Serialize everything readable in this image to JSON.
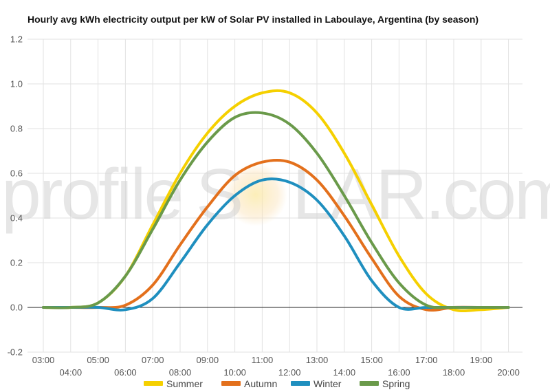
{
  "chart_data": {
    "type": "line",
    "title": "Hourly avg kWh electricity output per kW of Solar PV installed in Laboulaye, Argentina (by season)",
    "xlabel": "",
    "ylabel": "",
    "ylim": [
      -0.2,
      1.2
    ],
    "y_ticks": [
      "-0.2",
      "0.0",
      "0.2",
      "0.4",
      "0.6",
      "0.8",
      "1.0",
      "1.2"
    ],
    "categories": [
      "03:00",
      "04:00",
      "05:00",
      "06:00",
      "07:00",
      "08:00",
      "09:00",
      "10:00",
      "11:00",
      "12:00",
      "13:00",
      "14:00",
      "15:00",
      "16:00",
      "17:00",
      "18:00",
      "19:00",
      "20:00"
    ],
    "grid": true,
    "legend_position": "bottom",
    "series": [
      {
        "name": "Summer",
        "color": "#f5d000",
        "values": [
          0.0,
          0.0,
          0.02,
          0.14,
          0.37,
          0.6,
          0.78,
          0.9,
          0.96,
          0.96,
          0.87,
          0.69,
          0.46,
          0.23,
          0.06,
          -0.01,
          -0.01,
          0.0
        ]
      },
      {
        "name": "Autumn",
        "color": "#e3701c",
        "values": [
          0.0,
          0.0,
          0.0,
          0.01,
          0.1,
          0.28,
          0.45,
          0.59,
          0.65,
          0.65,
          0.57,
          0.41,
          0.22,
          0.05,
          -0.01,
          0.0,
          0.0,
          0.0
        ]
      },
      {
        "name": "Winter",
        "color": "#1f8fbf",
        "values": [
          0.0,
          0.0,
          0.0,
          -0.01,
          0.04,
          0.2,
          0.37,
          0.5,
          0.57,
          0.56,
          0.48,
          0.32,
          0.12,
          0.0,
          0.0,
          0.0,
          0.0,
          0.0
        ]
      },
      {
        "name": "Spring",
        "color": "#6a9a4a",
        "values": [
          0.0,
          0.0,
          0.02,
          0.14,
          0.35,
          0.57,
          0.74,
          0.85,
          0.87,
          0.82,
          0.69,
          0.5,
          0.29,
          0.11,
          0.01,
          0.0,
          0.0,
          0.0
        ]
      }
    ]
  },
  "watermark": {
    "prefix": "profile",
    "middle": "S",
    "suffix": "LAR.com"
  }
}
